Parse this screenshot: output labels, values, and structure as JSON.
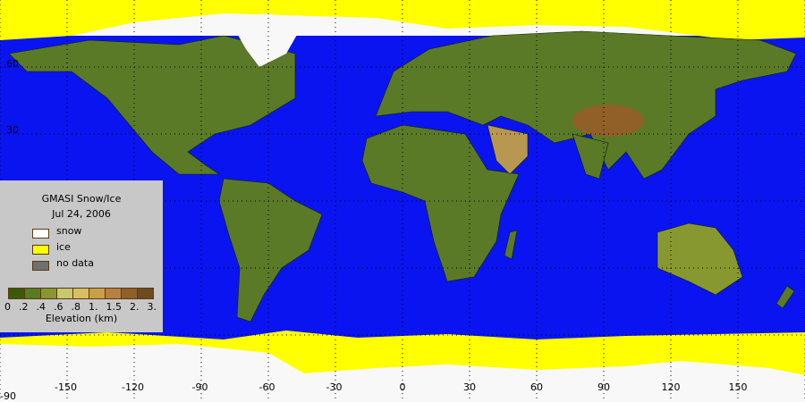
{
  "map": {
    "colors": {
      "ocean": "#0a14f0",
      "ice": "#ffff00",
      "snow": "#f8f8f8",
      "land": "#5a7a28",
      "no_data": "#707070",
      "legend_bg": "#c8c8c8"
    },
    "longitude_labels": [
      "-150",
      "-120",
      "-90",
      "-60",
      "-30",
      "0",
      "30",
      "60",
      "90",
      "120",
      "150"
    ],
    "latitude_labels": [
      "60",
      "30",
      "-90"
    ]
  },
  "legend": {
    "title": "GMASI Snow/Ice",
    "date": "Jul 24, 2006",
    "items": [
      {
        "label": "snow",
        "color": "#ffffff"
      },
      {
        "label": "ice",
        "color": "#ffff00"
      },
      {
        "label": "no data",
        "color": "#707070"
      }
    ],
    "elevation_colors": [
      "#3a5a0a",
      "#5a7a20",
      "#889830",
      "#c8c870",
      "#d8c060",
      "#c8a048",
      "#b88040",
      "#906028",
      "#6e4a20"
    ],
    "elevation_ticks": [
      "0",
      ".2",
      ".4",
      ".6",
      ".8",
      "1.",
      "1.5",
      "2.",
      "3."
    ],
    "elevation_label": "Elevation (km)"
  }
}
